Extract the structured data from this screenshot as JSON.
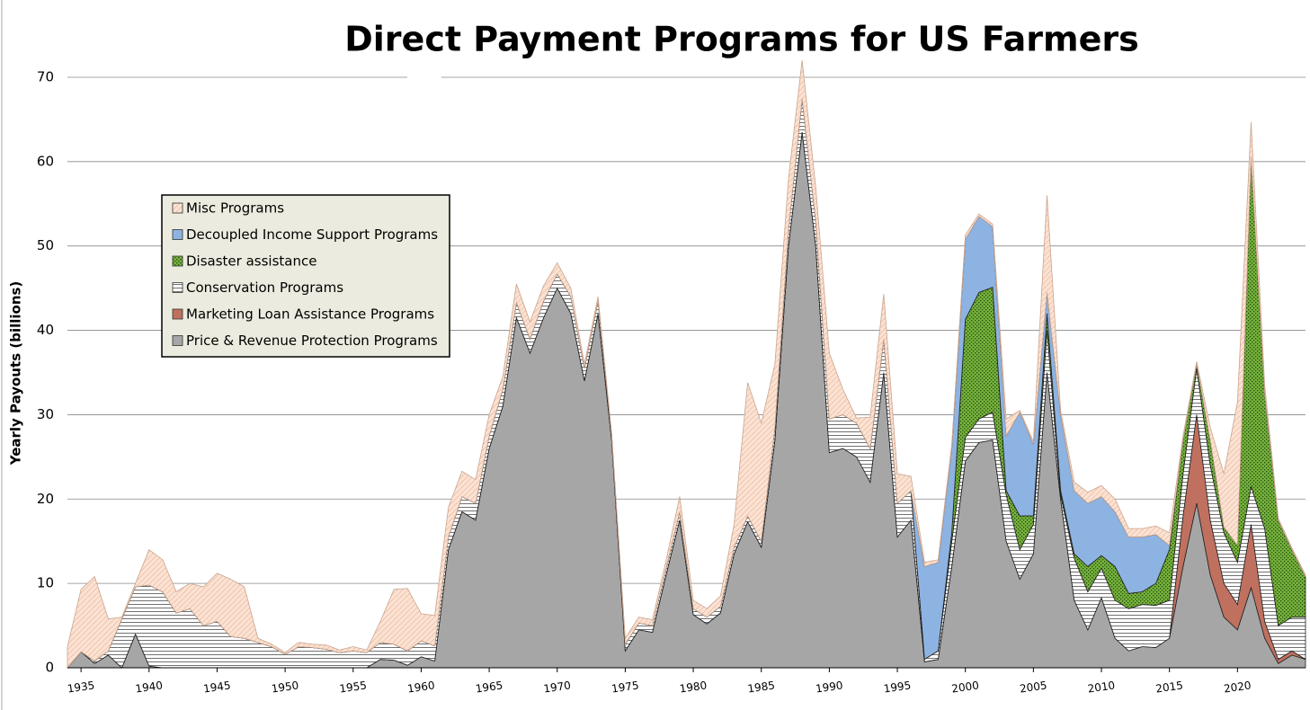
{
  "chart_data": {
    "type": "stacked_area",
    "title": "Direct Payment Programs for US Farmers",
    "y_label": "Yearly Payouts (billions)",
    "x": [
      1934,
      1935,
      1936,
      1937,
      1938,
      1939,
      1940,
      1941,
      1942,
      1943,
      1944,
      1945,
      1946,
      1947,
      1948,
      1949,
      1950,
      1951,
      1952,
      1953,
      1954,
      1955,
      1956,
      1957,
      1958,
      1959,
      1960,
      1961,
      1962,
      1963,
      1964,
      1965,
      1966,
      1967,
      1968,
      1969,
      1970,
      1971,
      1972,
      1973,
      1974,
      1975,
      1976,
      1977,
      1978,
      1979,
      1980,
      1981,
      1982,
      1983,
      1984,
      1985,
      1986,
      1987,
      1988,
      1989,
      1990,
      1991,
      1992,
      1993,
      1994,
      1995,
      1996,
      1997,
      1998,
      1999,
      2000,
      2001,
      2002,
      2003,
      2004,
      2005,
      2006,
      2007,
      2008,
      2009,
      2010,
      2011,
      2012,
      2013,
      2014,
      2015,
      2016,
      2017,
      2018,
      2019,
      2020,
      2021,
      2022,
      2023,
      2024,
      2025
    ],
    "series": [
      {
        "name": "Price & Revenue Protection Programs",
        "color": "#a6a6a6",
        "values": [
          0,
          1.9,
          0.5,
          1.5,
          0,
          4,
          0.2,
          0,
          0,
          0,
          0,
          0,
          0,
          0,
          0,
          0,
          0,
          0,
          0,
          0,
          0,
          0,
          0,
          1,
          0.9,
          0.3,
          1.3,
          0.8,
          14,
          18.5,
          17.5,
          26,
          31,
          41.5,
          37.3,
          41.5,
          45,
          42,
          34,
          42,
          27,
          2,
          4.5,
          4.2,
          11,
          17.5,
          6.3,
          5.2,
          6.5,
          13.5,
          17.3,
          14.3,
          27,
          50,
          63.5,
          50,
          25.5,
          26,
          25,
          22,
          35,
          15.5,
          17.5,
          0.7,
          1,
          12,
          24.5,
          26.7,
          27,
          15,
          10.5,
          13.5,
          35,
          20,
          8,
          4.5,
          8.3,
          3.5,
          2,
          2.5,
          2.4,
          3.5,
          12,
          19.5,
          11,
          6,
          4.5,
          9.5,
          3.5,
          0.5,
          1.5,
          1
        ]
      },
      {
        "name": "Marketing Loan Assistance Programs",
        "color": "#c0705f",
        "values": [
          0,
          0,
          0,
          0,
          0,
          0,
          0,
          0,
          0,
          0,
          0,
          0,
          0,
          0,
          0,
          0,
          0,
          0,
          0,
          0,
          0,
          0,
          0,
          0,
          0,
          0,
          0,
          0,
          0,
          0,
          0,
          0,
          0,
          0,
          0,
          0,
          0,
          0,
          0,
          0,
          0,
          0,
          0,
          0,
          0,
          0,
          0,
          0,
          0,
          0,
          0,
          0,
          0,
          0,
          0,
          0,
          0,
          0,
          0,
          0,
          0,
          0,
          0,
          0,
          0,
          0,
          0,
          0,
          0,
          0,
          0,
          0,
          0,
          0,
          0,
          0,
          0,
          0,
          0,
          0,
          0,
          0,
          6,
          10.5,
          6.5,
          4,
          3,
          7.5,
          2,
          0.5,
          0.5,
          0
        ]
      },
      {
        "name": "Conservation Programs",
        "color": "#ffffff",
        "pattern": "horizontal",
        "values": [
          0,
          0,
          0.3,
          0.5,
          5.8,
          5.6,
          9.6,
          9,
          6.5,
          7,
          5,
          5.5,
          3.7,
          3.5,
          3,
          2.5,
          1.6,
          2.5,
          2.4,
          2.2,
          1.8,
          2,
          1.8,
          2,
          1.9,
          1.7,
          1.9,
          1.8,
          1.5,
          1.8,
          2,
          1.5,
          2,
          1.8,
          1.7,
          2,
          1.7,
          2,
          1.5,
          1.5,
          0.5,
          0.8,
          0.8,
          0.8,
          0.8,
          1,
          0.7,
          0.8,
          0.8,
          0.8,
          0.7,
          0.7,
          1.5,
          2,
          4,
          3,
          4,
          4,
          4,
          4,
          4,
          4,
          3.5,
          0.3,
          1,
          3,
          2.8,
          2.8,
          3.3,
          5.5,
          3.5,
          3.5,
          5,
          0.5,
          5,
          4.5,
          3.5,
          4.5,
          5,
          5,
          5,
          4.5,
          5,
          5.5,
          6.5,
          6,
          5,
          4.5,
          11,
          4,
          4,
          5
        ]
      },
      {
        "name": "Disaster assistance",
        "color": "#77b13c",
        "pattern": "dots",
        "values": [
          0,
          0,
          0,
          0,
          0,
          0,
          0,
          0,
          0,
          0,
          0,
          0,
          0,
          0,
          0,
          0,
          0,
          0,
          0,
          0,
          0,
          0,
          0,
          0,
          0,
          0,
          0,
          0,
          0,
          0,
          0,
          0,
          0,
          0,
          0,
          0,
          0,
          0,
          0,
          0,
          0,
          0,
          0,
          0,
          0,
          0,
          0,
          0,
          0,
          0,
          0,
          0,
          0,
          0,
          0,
          0,
          0,
          0,
          0,
          0,
          0,
          0,
          0,
          0,
          0,
          1,
          14,
          15,
          14.8,
          0.5,
          4,
          1,
          2,
          0.5,
          0.5,
          3,
          1.5,
          4,
          1.8,
          1.5,
          2.6,
          6,
          4,
          0.5,
          3,
          0.7,
          2,
          39,
          16,
          12.5,
          8,
          4.8
        ]
      },
      {
        "name": "Decoupled Income Support Programs",
        "color": "#8db3e2",
        "values": [
          0,
          0,
          0,
          0,
          0,
          0,
          0,
          0,
          0,
          0,
          0,
          0,
          0,
          0,
          0,
          0,
          0,
          0,
          0,
          0,
          0,
          0,
          0,
          0,
          0,
          0,
          0,
          0,
          0,
          0,
          0,
          0,
          0,
          0,
          0,
          0,
          0,
          0,
          0,
          0,
          0,
          0,
          0,
          0,
          0,
          0,
          0,
          0,
          0,
          0,
          0,
          0,
          0,
          0,
          0,
          0,
          0,
          0,
          0,
          0,
          0,
          0,
          0,
          11,
          10.5,
          10,
          9.5,
          9,
          7.2,
          6.5,
          12.3,
          8.5,
          2.5,
          9,
          7.5,
          7.5,
          7,
          6.5,
          6.7,
          6.5,
          5.8,
          0.5,
          0,
          0,
          0,
          0,
          0,
          0,
          0,
          0,
          0,
          0
        ]
      },
      {
        "name": "Misc Programs",
        "color": "#fbe2d3",
        "pattern": "diagonal",
        "values": [
          2.5,
          7.4,
          10,
          3.8,
          0.2,
          0.4,
          4.2,
          3.8,
          2.5,
          3,
          4.6,
          5.7,
          6.8,
          6.1,
          0.5,
          0.3,
          0.2,
          0.5,
          0.4,
          0.5,
          0.3,
          0.5,
          0.3,
          2.5,
          6.5,
          7.4,
          3.2,
          3.6,
          3.5,
          3,
          2.8,
          2.5,
          1.5,
          2.2,
          2,
          1.8,
          1.3,
          1,
          0.5,
          0.5,
          0.3,
          0.7,
          0.7,
          0.7,
          0.9,
          1.8,
          1,
          1,
          1.2,
          2.7,
          15.8,
          14,
          7.5,
          6,
          4.5,
          4,
          7.8,
          3,
          0.6,
          3.7,
          5.3,
          3.5,
          1.7,
          0.5,
          0.3,
          0.5,
          0.5,
          0.3,
          0.3,
          2,
          0.2,
          0.3,
          11.5,
          0.5,
          1,
          1.3,
          1.3,
          1.5,
          1,
          1,
          1,
          1.5,
          0.5,
          0.3,
          1.5,
          6.3,
          17,
          4.2,
          1,
          0.2,
          0.2,
          0.2
        ]
      }
    ],
    "xlim": [
      1934,
      2025
    ],
    "xticks": [
      1935,
      1940,
      1945,
      1950,
      1955,
      1960,
      1965,
      1970,
      1975,
      1980,
      1985,
      1990,
      1995,
      2000,
      2005,
      2010,
      2015,
      2020
    ],
    "ylim": [
      0,
      79
    ],
    "yticks": [
      0,
      10,
      20,
      30,
      40,
      50,
      60,
      70
    ],
    "grid": true,
    "legend": "upper left"
  }
}
